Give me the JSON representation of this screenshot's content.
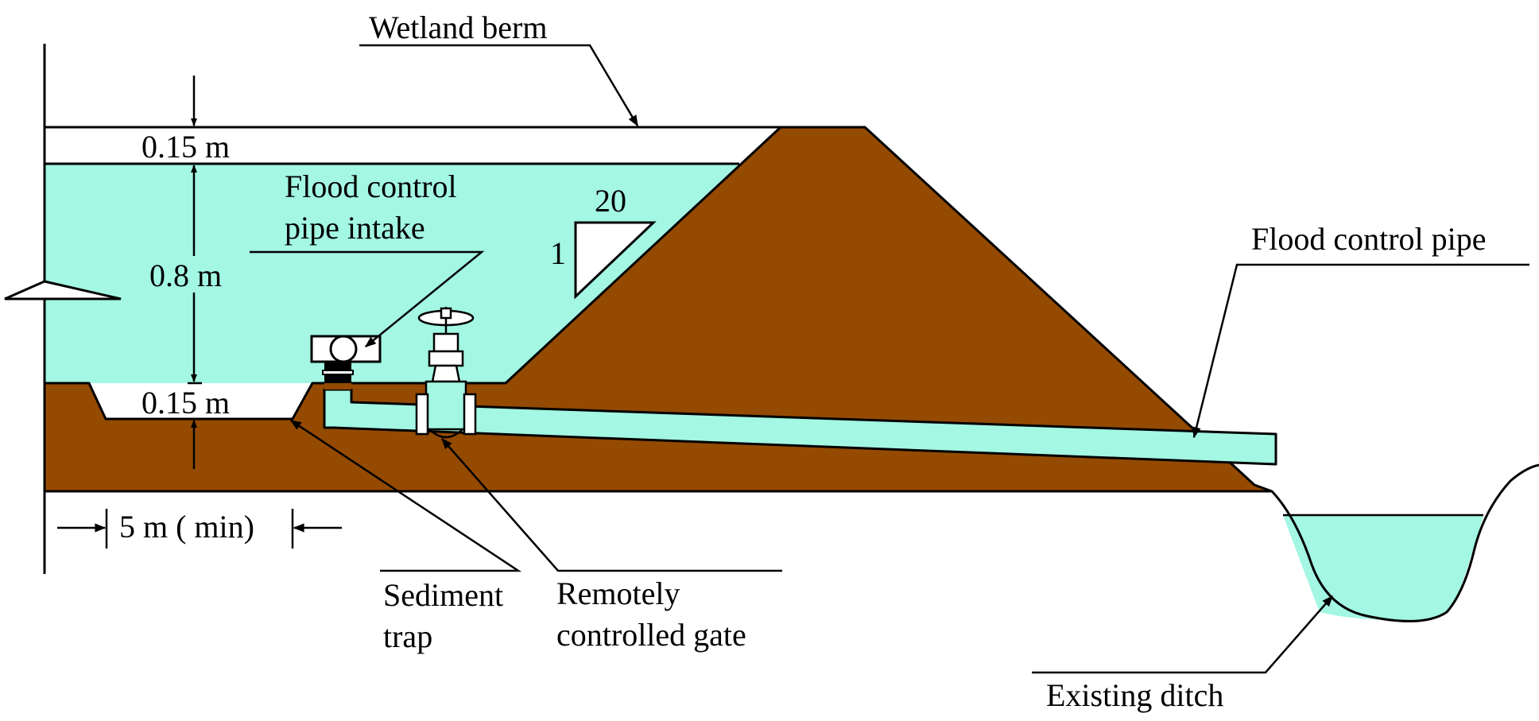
{
  "labels": {
    "wetland_berm": "Wetland berm",
    "freeboard": "0.15 m",
    "water_depth": "0.8 m",
    "trap_depth": "0.15 m",
    "intake_line1": "Flood control",
    "intake_line2": "pipe intake",
    "slope_run": "20",
    "slope_rise": "1",
    "flood_pipe": "Flood control pipe",
    "trap_width": "5 m ( min)",
    "sediment_line1": "Sediment",
    "sediment_line2": "trap",
    "gate_line1": "Remotely",
    "gate_line2": "controlled gate",
    "existing_ditch": "Existing ditch"
  },
  "colors": {
    "water": "#a3f7e3",
    "soil": "#944a00",
    "line": "#000000"
  }
}
